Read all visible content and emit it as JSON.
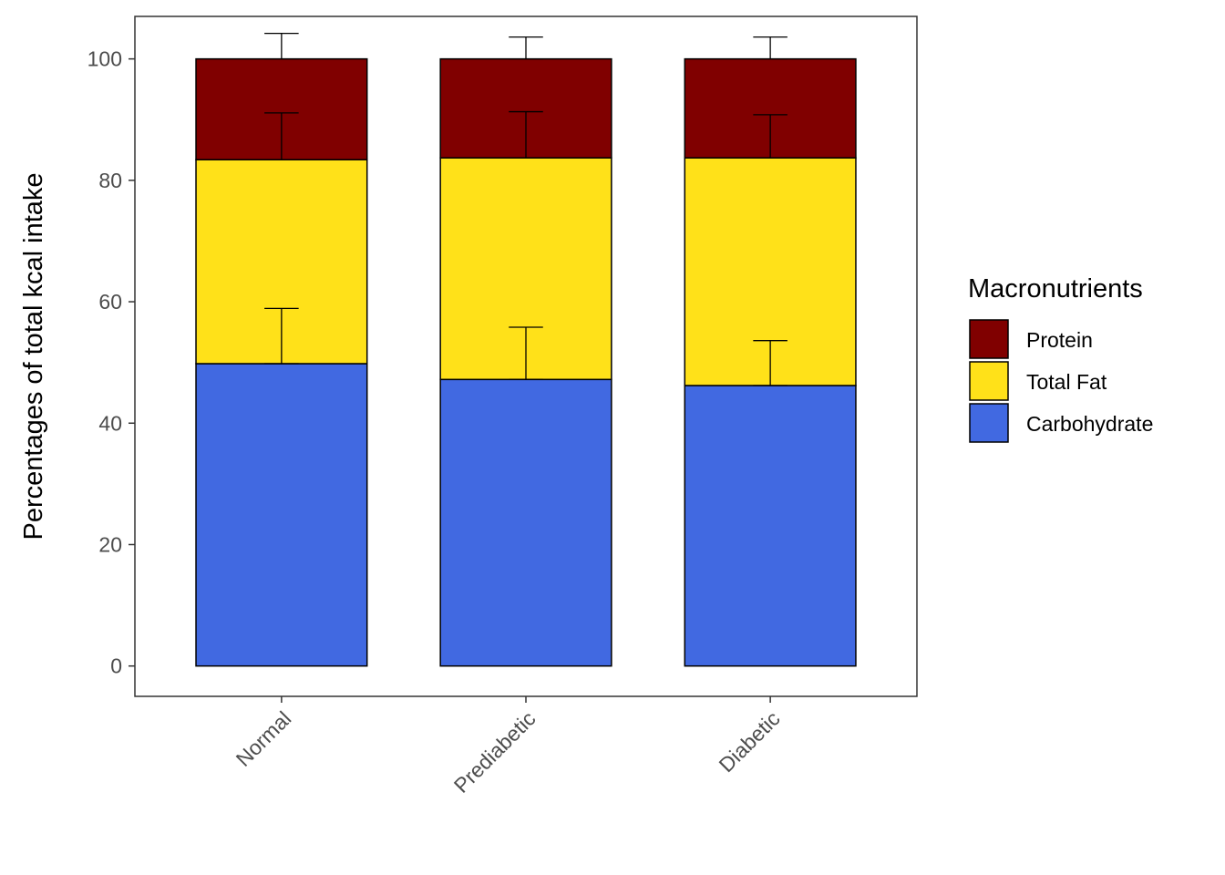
{
  "chart_data": {
    "type": "bar",
    "stacked": true,
    "title": "",
    "xlabel": "",
    "ylabel": "Percentages of total kcal intake",
    "categories": [
      "Normal",
      "Prediabetic",
      "Diabetic"
    ],
    "ylim": [
      -5,
      107
    ],
    "yticks": [
      0,
      20,
      40,
      60,
      80,
      100
    ],
    "grid": false,
    "legend": {
      "title": "Macronutrients",
      "position": "right",
      "order": [
        "Protein",
        "Total Fat",
        "Carbohydrate"
      ]
    },
    "series": [
      {
        "name": "Carbohydrate",
        "color": "#4169E1",
        "values": [
          49.8,
          47.2,
          46.2
        ],
        "error": [
          9.1,
          8.6,
          7.4
        ]
      },
      {
        "name": "Total Fat",
        "color": "#FFE119",
        "values": [
          33.6,
          36.5,
          37.5
        ],
        "error": [
          7.7,
          7.6,
          7.1
        ]
      },
      {
        "name": "Protein",
        "color": "#800000",
        "values": [
          16.6,
          16.3,
          16.3
        ],
        "error": [
          4.2,
          3.6,
          3.6
        ]
      }
    ]
  }
}
